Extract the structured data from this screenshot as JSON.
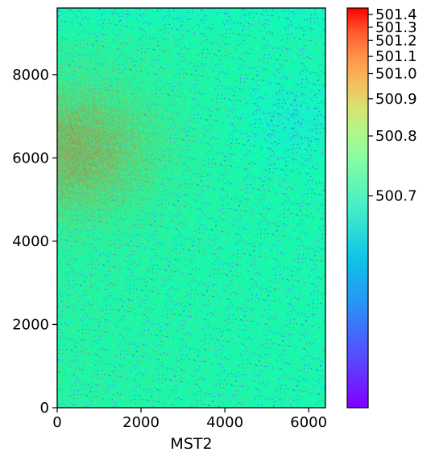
{
  "chart_data": {
    "type": "heatmap",
    "title": "",
    "xlabel": "MST2",
    "ylabel": "",
    "xlim": [
      0,
      6400
    ],
    "ylim": [
      0,
      9600
    ],
    "x_ticks": [
      {
        "value": 0,
        "label": "0"
      },
      {
        "value": 2000,
        "label": "2000"
      },
      {
        "value": 4000,
        "label": "4000"
      },
      {
        "value": 6000,
        "label": "6000"
      }
    ],
    "y_ticks": [
      {
        "value": 0,
        "label": "0"
      },
      {
        "value": 2000,
        "label": "2000"
      },
      {
        "value": 4000,
        "label": "4000"
      },
      {
        "value": 6000,
        "label": "6000"
      },
      {
        "value": 8000,
        "label": "8000"
      }
    ],
    "colormap": "rainbow",
    "colorbar": {
      "vmin": 500.3,
      "vmax": 501.45,
      "scale": "nonlinear",
      "ticks": [
        {
          "value": 500.7,
          "label": "500.7"
        },
        {
          "value": 500.8,
          "label": "500.8"
        },
        {
          "value": 500.9,
          "label": "500.9"
        },
        {
          "value": 501.0,
          "label": "501.0"
        },
        {
          "value": 501.1,
          "label": "501.1"
        },
        {
          "value": 501.2,
          "label": "501.2"
        },
        {
          "value": 501.3,
          "label": "501.3"
        },
        {
          "value": 501.4,
          "label": "501.4"
        }
      ]
    },
    "field_description": {
      "background_value": 500.72,
      "warm_region": {
        "x_range": [
          0,
          2500
        ],
        "y_range": [
          4500,
          8000
        ],
        "peak_value": 500.88
      },
      "cool_region": {
        "x_range": [
          4800,
          6400
        ],
        "y_range": [
          6000,
          7800
        ],
        "low_value": 500.62
      },
      "noise": "high-frequency speckle"
    }
  }
}
